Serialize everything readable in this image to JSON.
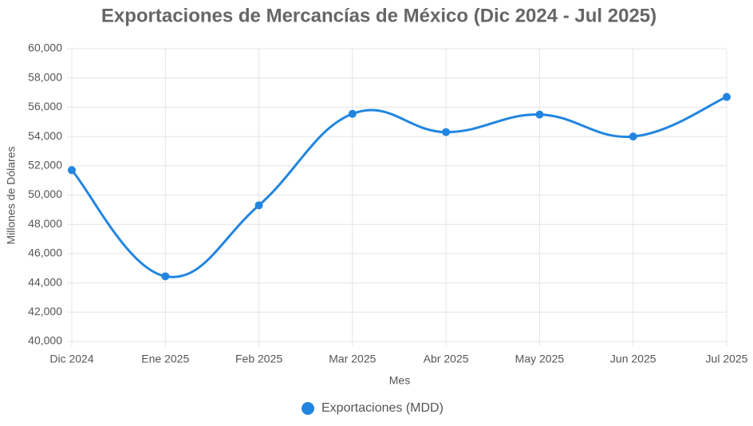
{
  "chart_data": {
    "type": "line",
    "title": "Exportaciones de Mercancías de México (Dic 2024 - Jul 2025)",
    "x_label": "Mes",
    "y_label": "Millones de Dólares",
    "categories": [
      "Dic 2024",
      "Ene 2025",
      "Feb 2025",
      "Mar 2025",
      "Abr 2025",
      "May 2025",
      "Jun 2025",
      "Jul 2025"
    ],
    "series": [
      {
        "name": "Exportaciones (MDD)",
        "color": "#2185e0",
        "values": [
          51700,
          44450,
          49300,
          55550,
          54300,
          55500,
          54000,
          56700
        ]
      }
    ],
    "ylim": [
      40000,
      60000
    ],
    "yticks": [
      {
        "value": 40000,
        "label": "40,000"
      },
      {
        "value": 42000,
        "label": "42,000"
      },
      {
        "value": 44000,
        "label": "44,000"
      },
      {
        "value": 46000,
        "label": "46,000"
      },
      {
        "value": 48000,
        "label": "48,000"
      },
      {
        "value": 50000,
        "label": "50,000"
      },
      {
        "value": 52000,
        "label": "52,000"
      },
      {
        "value": 54000,
        "label": "54,000"
      },
      {
        "value": 56000,
        "label": "56,000"
      },
      {
        "value": 58000,
        "label": "58,000"
      },
      {
        "value": 60000,
        "label": "60,000"
      }
    ],
    "grid": true,
    "legend": "bottom"
  }
}
